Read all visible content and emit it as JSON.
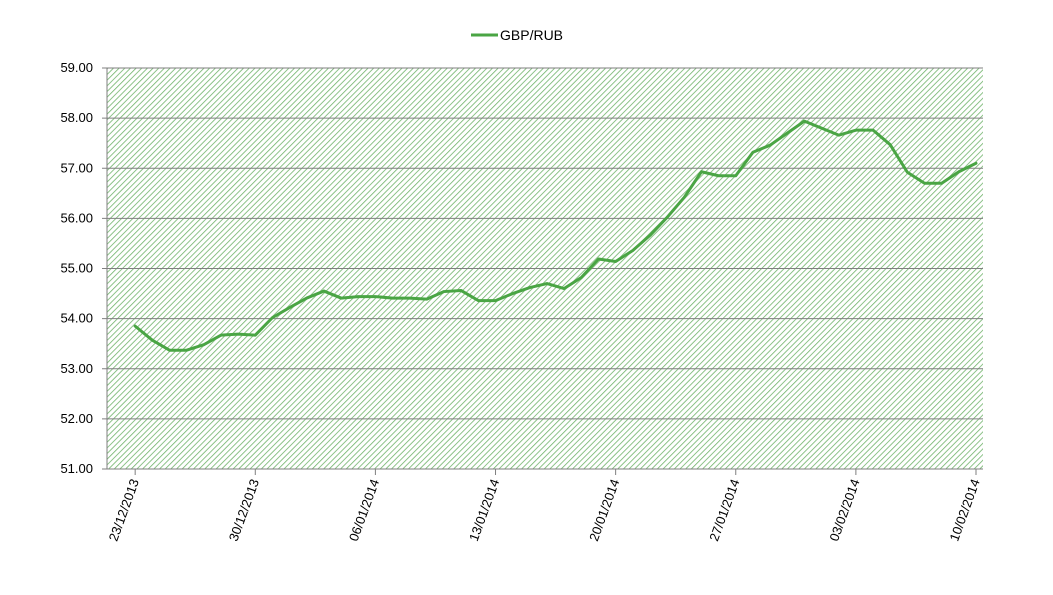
{
  "chart_data": {
    "type": "line",
    "series": [
      {
        "name": "GBP/RUB",
        "color": "#4aa544",
        "points": [
          [
            "2013-12-23",
            53.85
          ],
          [
            "2013-12-24",
            53.57
          ],
          [
            "2013-12-25",
            53.37
          ],
          [
            "2013-12-26",
            53.37
          ],
          [
            "2013-12-27",
            53.48
          ],
          [
            "2013-12-28",
            53.67
          ],
          [
            "2013-12-29",
            53.69
          ],
          [
            "2013-12-30",
            53.67
          ],
          [
            "2013-12-31",
            54.02
          ],
          [
            "2014-01-01",
            54.22
          ],
          [
            "2014-01-02",
            54.41
          ],
          [
            "2014-01-03",
            54.55
          ],
          [
            "2014-01-04",
            54.41
          ],
          [
            "2014-01-05",
            54.44
          ],
          [
            "2014-01-06",
            54.44
          ],
          [
            "2014-01-07",
            54.41
          ],
          [
            "2014-01-08",
            54.41
          ],
          [
            "2014-01-09",
            54.39
          ],
          [
            "2014-01-10",
            54.54
          ],
          [
            "2014-01-11",
            54.56
          ],
          [
            "2014-01-12",
            54.36
          ],
          [
            "2014-01-13",
            54.36
          ],
          [
            "2014-01-14",
            54.5
          ],
          [
            "2014-01-15",
            54.62
          ],
          [
            "2014-01-16",
            54.7
          ],
          [
            "2014-01-17",
            54.6
          ],
          [
            "2014-01-18",
            54.82
          ],
          [
            "2014-01-19",
            55.19
          ],
          [
            "2014-01-20",
            55.14
          ],
          [
            "2014-01-21",
            55.36
          ],
          [
            "2014-01-22",
            55.66
          ],
          [
            "2014-01-23",
            56.02
          ],
          [
            "2014-01-24",
            56.42
          ],
          [
            "2014-01-25",
            56.93
          ],
          [
            "2014-01-26",
            56.85
          ],
          [
            "2014-01-27",
            56.85
          ],
          [
            "2014-01-28",
            57.32
          ],
          [
            "2014-01-29",
            57.46
          ],
          [
            "2014-01-30",
            57.7
          ],
          [
            "2014-01-31",
            57.94
          ],
          [
            "2014-02-01",
            57.8
          ],
          [
            "2014-02-02",
            57.66
          ],
          [
            "2014-02-03",
            57.76
          ],
          [
            "2014-02-04",
            57.76
          ],
          [
            "2014-02-05",
            57.47
          ],
          [
            "2014-02-06",
            56.92
          ],
          [
            "2014-02-07",
            56.7
          ],
          [
            "2014-02-08",
            56.7
          ],
          [
            "2014-02-09",
            56.93
          ],
          [
            "2014-02-10",
            57.1
          ]
        ]
      }
    ],
    "ylim": [
      51,
      59
    ],
    "y_ticks": [
      "51.00",
      "52.00",
      "53.00",
      "54.00",
      "55.00",
      "56.00",
      "57.00",
      "58.00",
      "59.00"
    ],
    "x_ticks": [
      {
        "date": "2013-12-23",
        "label": "23/12/2013"
      },
      {
        "date": "2013-12-30",
        "label": "30/12/2013"
      },
      {
        "date": "2014-01-06",
        "label": "06/01/2014"
      },
      {
        "date": "2014-01-13",
        "label": "13/01/2014"
      },
      {
        "date": "2014-01-20",
        "label": "20/01/2014"
      },
      {
        "date": "2014-01-27",
        "label": "27/01/2014"
      },
      {
        "date": "2014-02-03",
        "label": "03/02/2014"
      },
      {
        "date": "2014-02-10",
        "label": "10/02/2014"
      }
    ],
    "xlim": [
      "2013-12-22",
      "2014-02-10"
    ],
    "grid": true,
    "legend_position": "top-center",
    "plot_background": "diagonal-hatch-green"
  }
}
